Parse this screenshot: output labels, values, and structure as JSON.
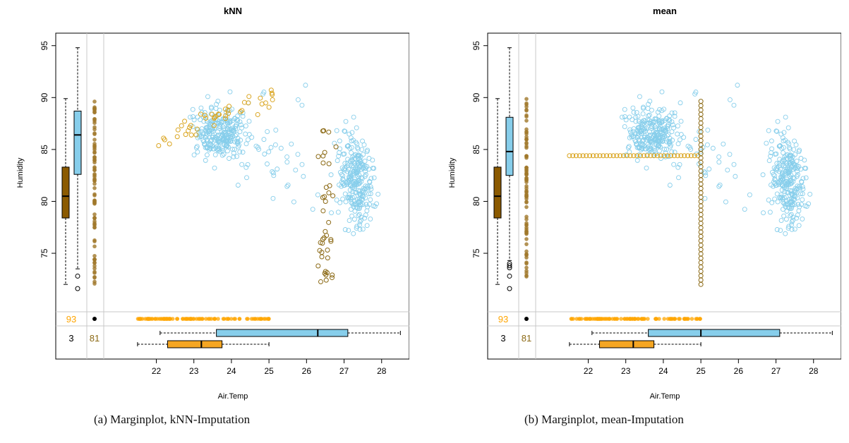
{
  "colors": {
    "observed": "#87CEEB",
    "imputed": "#DAA520",
    "imputed_box": "#F5A623",
    "imputed_dark": "#8B5A00",
    "missing_both": "#000000",
    "imputed_point": "#FFA500",
    "count_text_x": "#FFA500",
    "count_text_y": "#8B6914"
  },
  "chart_data": [
    {
      "type": "scatter",
      "title": "kNN",
      "caption": "(a) Marginplot, kNN-Imputation",
      "xlabel": "Air.Temp",
      "ylabel": "Humidity",
      "xlim": [
        20.6,
        28.7
      ],
      "ylim": [
        69.5,
        96.0
      ],
      "x_ticks": [
        22,
        23,
        24,
        25,
        26,
        27,
        28
      ],
      "y_ticks": [
        75,
        80,
        85,
        90,
        95
      ],
      "missing_counts": {
        "humidity_missing": "93",
        "both_missing": "3",
        "air_temp_missing": "81"
      },
      "boxplots": {
        "humidity_imputed": {
          "min": 72.0,
          "q1": 78.4,
          "median": 80.5,
          "q3": 83.3,
          "max": 89.9,
          "outliers": []
        },
        "humidity_observed": {
          "min": 73.5,
          "q1": 82.6,
          "median": 86.4,
          "q3": 88.7,
          "max": 94.8,
          "outliers": [
            72.8,
            71.6
          ]
        },
        "airtemp_observed": {
          "min": 22.1,
          "q1": 23.6,
          "median": 26.3,
          "q3": 27.1,
          "max": 28.5
        },
        "airtemp_imputed": {
          "min": 21.5,
          "q1": 22.3,
          "median": 23.2,
          "q3": 23.75,
          "max": 25.0
        }
      },
      "imputation": "knn"
    },
    {
      "type": "scatter",
      "title": "mean",
      "caption": "(b) Marginplot, mean-Imputation",
      "xlabel": "Air.Temp",
      "ylabel": "Humidity",
      "xlim": [
        20.6,
        28.7
      ],
      "ylim": [
        69.5,
        96.0
      ],
      "x_ticks": [
        22,
        23,
        24,
        25,
        26,
        27,
        28
      ],
      "y_ticks": [
        75,
        80,
        85,
        90,
        95
      ],
      "missing_counts": {
        "humidity_missing": "93",
        "both_missing": "3",
        "air_temp_missing": "81"
      },
      "boxplots": {
        "humidity_imputed": {
          "min": 72.0,
          "q1": 78.4,
          "median": 80.5,
          "q3": 83.3,
          "max": 89.9,
          "outliers": []
        },
        "humidity_observed": {
          "min": 74.3,
          "q1": 82.5,
          "median": 84.8,
          "q3": 88.1,
          "max": 94.8,
          "outliers": [
            74.0,
            73.8,
            73.6,
            72.8,
            71.6
          ]
        },
        "airtemp_observed": {
          "min": 22.1,
          "q1": 23.6,
          "median": 25.0,
          "q3": 27.1,
          "max": 28.5
        },
        "airtemp_imputed": {
          "min": 21.5,
          "q1": 22.3,
          "median": 23.2,
          "q3": 23.75,
          "max": 25.0
        }
      },
      "imputation": "mean",
      "mean_values": {
        "air_temp": 25.0,
        "humidity": 84.4
      }
    }
  ]
}
